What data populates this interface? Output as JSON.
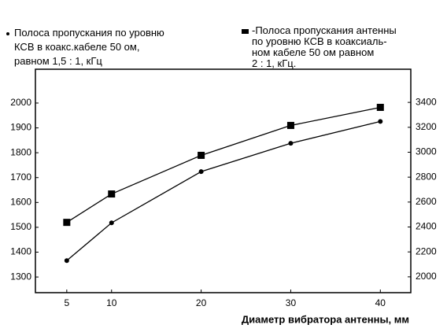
{
  "chart_data": {
    "type": "line",
    "x_label": "Диаметр вибратора антенны, мм",
    "x": [
      5,
      10,
      20,
      30,
      40
    ],
    "xlim": [
      1.5,
      43.4
    ],
    "xticks": [
      5,
      10,
      20,
      30,
      40
    ],
    "ylim": [
      1237,
      2136
    ],
    "yticks": [
      1300,
      1400,
      1500,
      1600,
      1700,
      1800,
      1900,
      2000
    ],
    "y2lim": [
      1873,
      3666
    ],
    "y2ticks": [
      2000,
      2200,
      2400,
      2600,
      2800,
      3000,
      3200,
      3400
    ],
    "series": [
      {
        "name": "Полоса пропускания по уровню\nКСВ в коакс.кабеле 50 ом,\nравном 1,5 : 1, кГц",
        "color": "#000000",
        "marker": "circle",
        "values": [
          1366,
          1518,
          1724,
          1838,
          1926
        ]
      },
      {
        "name": "-Полоса пропускания антенны\nпо уровню КСВ в коаксиаль-\nном кабеле 50 ом равном\n2 : 1, кГц.",
        "color": "#000000",
        "marker": "square",
        "axis": "y2",
        "values": [
          2437,
          2665,
          2975,
          3215,
          3360
        ]
      }
    ]
  }
}
